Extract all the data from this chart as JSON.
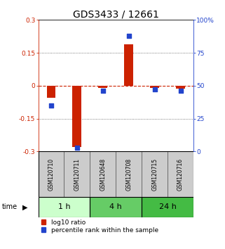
{
  "title": "GDS3433 / 12661",
  "samples": [
    "GSM120710",
    "GSM120711",
    "GSM120648",
    "GSM120708",
    "GSM120715",
    "GSM120716"
  ],
  "log10_ratio": [
    -0.055,
    -0.28,
    -0.01,
    0.19,
    -0.01,
    -0.012
  ],
  "percentile_rank": [
    35,
    3,
    46,
    88,
    47,
    46
  ],
  "ylim_left": [
    -0.3,
    0.3
  ],
  "ylim_right": [
    0,
    100
  ],
  "yticks_left": [
    -0.3,
    -0.15,
    0,
    0.15,
    0.3
  ],
  "yticks_right": [
    0,
    25,
    50,
    75,
    100
  ],
  "ytick_labels_left": [
    "-0.3",
    "-0.15",
    "0",
    "0.15",
    "0.3"
  ],
  "ytick_labels_right": [
    "0",
    "25",
    "50",
    "75",
    "100%"
  ],
  "time_groups": [
    {
      "label": "1 h",
      "start": 0,
      "end": 2,
      "color": "#ccffcc"
    },
    {
      "label": "4 h",
      "start": 2,
      "end": 4,
      "color": "#66cc66"
    },
    {
      "label": "24 h",
      "start": 4,
      "end": 6,
      "color": "#44bb44"
    }
  ],
  "bar_color": "#cc2200",
  "square_color": "#2244cc",
  "dashed_line_color": "#cc2200",
  "dotted_line_color": "#555555",
  "bar_width": 0.35,
  "square_size": 18,
  "title_fontsize": 10,
  "tick_fontsize": 6.5,
  "label_fontsize": 7,
  "legend_fontsize": 6.5,
  "time_label_fontsize": 8,
  "sample_fontsize": 5.5,
  "sample_box_color": "#cccccc",
  "sample_box_edge": "#555555"
}
